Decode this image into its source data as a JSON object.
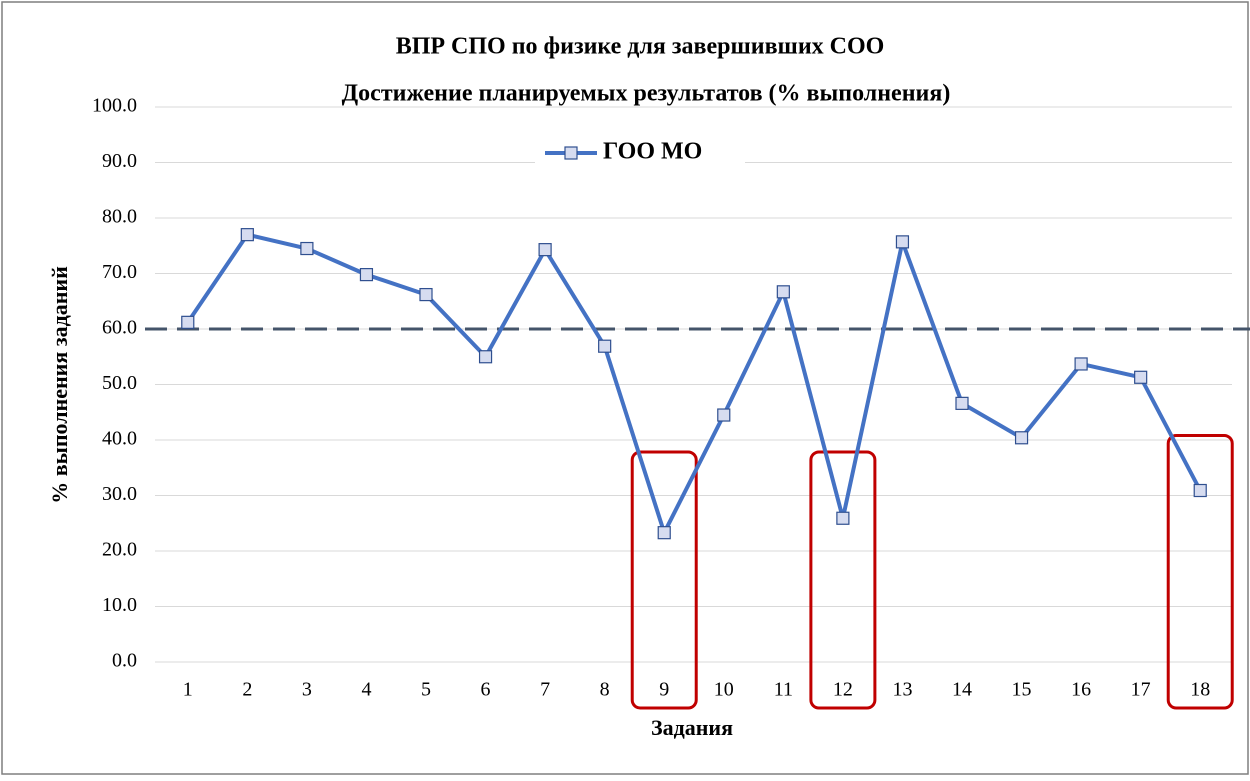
{
  "chart_data": {
    "type": "line",
    "title": "ВПР СПО по физике для завершивших СОО",
    "subtitle": "Достижение планируемых результатов (% выполнения)",
    "x_label": "Задания",
    "y_label": "% выполнения заданий",
    "categories": [
      "1",
      "2",
      "3",
      "4",
      "5",
      "6",
      "7",
      "8",
      "9",
      "10",
      "11",
      "12",
      "13",
      "14",
      "15",
      "16",
      "17",
      "18"
    ],
    "series": [
      {
        "name": "ГОО МО",
        "color": "#4472c4",
        "values": [
          61.2,
          77.0,
          74.5,
          69.8,
          66.2,
          55.0,
          74.3,
          56.9,
          23.3,
          44.5,
          66.7,
          25.9,
          75.7,
          46.6,
          40.4,
          53.7,
          51.3,
          30.9
        ]
      }
    ],
    "reference_line": 60,
    "highlighted_categories": [
      "9",
      "12",
      "18"
    ],
    "highlight_color": "#c00000",
    "ylim": [
      0,
      100
    ],
    "yticks": [
      {
        "value": 0,
        "label": "0.0"
      },
      {
        "value": 10,
        "label": "10.0"
      },
      {
        "value": 20,
        "label": "20.0"
      },
      {
        "value": 30,
        "label": "30.0"
      },
      {
        "value": 40,
        "label": "40.0"
      },
      {
        "value": 50,
        "label": "50.0"
      },
      {
        "value": 60,
        "label": "60.0"
      },
      {
        "value": 70,
        "label": "70.0"
      },
      {
        "value": 80,
        "label": "80.0"
      },
      {
        "value": 90,
        "label": "90.0"
      },
      {
        "value": 100,
        "label": "100.0"
      }
    ],
    "grid": true,
    "legend": "top"
  }
}
